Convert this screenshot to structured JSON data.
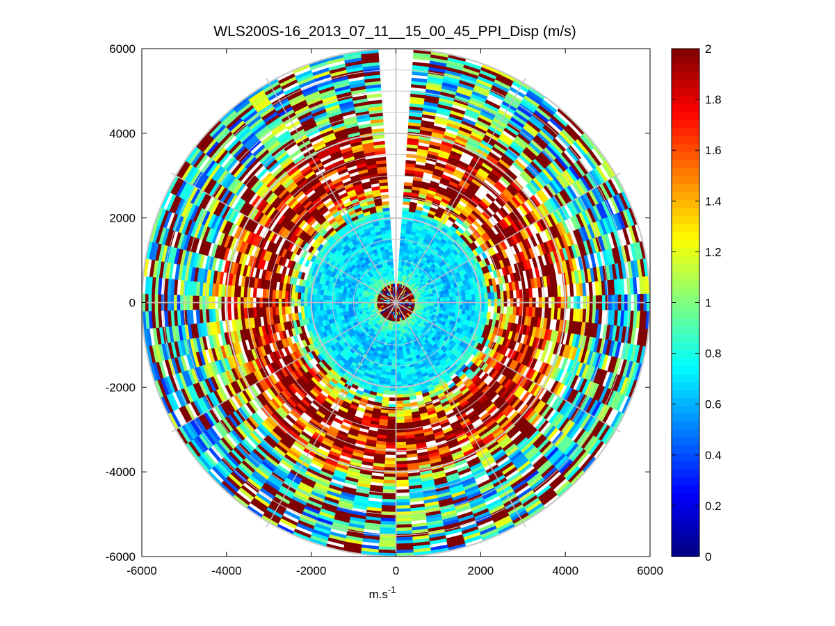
{
  "chart_data": {
    "type": "polar-heatmap",
    "title": "WLS200S-16_2013_07_11__15_00_45_PPI_Disp (m/s)",
    "xlabel": "m.s",
    "xlabel_superscript": "-1",
    "ylabel": "",
    "xlim": [
      -6000,
      6000
    ],
    "ylim": [
      -6000,
      6000
    ],
    "x_ticks": [
      "-6000",
      "-4000",
      "-2000",
      "0",
      "2000",
      "4000",
      "6000"
    ],
    "y_ticks": [
      "6000",
      "4000",
      "2000",
      "0",
      "-2000",
      "-4000",
      "-6000"
    ],
    "max_range": 6000,
    "range_rings": [
      2000,
      4000,
      6000
    ],
    "spoke_angle_step_deg": 30,
    "missing_sector_deg": [
      -4,
      4
    ],
    "grid": true,
    "colorbar": {
      "colormap": "jet",
      "range": [
        0,
        2
      ],
      "ticks": [
        "2",
        "1.8",
        "1.6",
        "1.4",
        "1.2",
        "1",
        "0.8",
        "0.6",
        "0.4",
        "0.2",
        "0"
      ],
      "location": "right"
    },
    "dispersion_profile_by_range": [
      {
        "range": 0,
        "value": 2.0
      },
      {
        "range": 300,
        "value": 1.9
      },
      {
        "range": 500,
        "value": 0.9
      },
      {
        "range": 1000,
        "value": 0.65
      },
      {
        "range": 2000,
        "value": 0.7
      },
      {
        "range": 2400,
        "value": 1.1
      },
      {
        "range": 3000,
        "value": 1.9
      },
      {
        "range": 3600,
        "value": 1.6
      },
      {
        "range": 4000,
        "value": 1.4
      },
      {
        "range": 4500,
        "value": 0.9
      },
      {
        "range": 5200,
        "value": 0.75
      },
      {
        "range": 6000,
        "value": 0.8
      }
    ]
  }
}
